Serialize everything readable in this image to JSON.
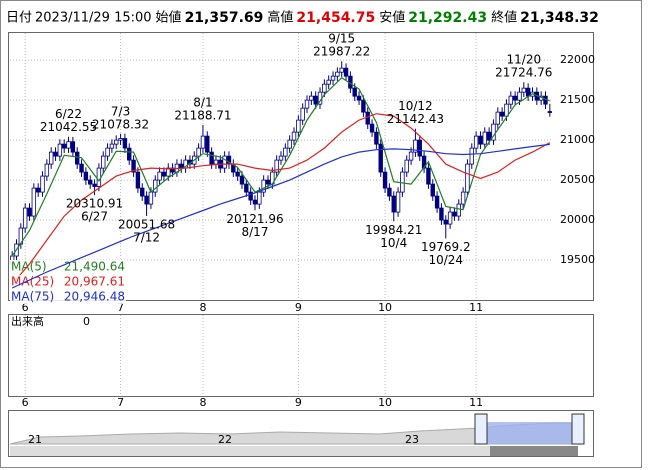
{
  "header": {
    "items": [
      {
        "label": "日付",
        "value": "2023/11/29 15:00",
        "color": "#000000"
      },
      {
        "label": "始値",
        "value": "21,357.69",
        "color": "#000000"
      },
      {
        "label": "高値",
        "value": "21,454.75",
        "color": "#e00000"
      },
      {
        "label": "安値",
        "value": "21,292.43",
        "color": "#008000"
      },
      {
        "label": "終値",
        "value": "21,348.32",
        "color": "#000000"
      }
    ]
  },
  "chart_data": {
    "type": "candlestick",
    "up_color": "#ffffff",
    "down_color": "#000080",
    "edge_color": "#000080",
    "ylim": [
      19000,
      22340
    ],
    "yticks": [
      19500,
      20000,
      20500,
      21000,
      21500,
      22000
    ],
    "grid": true,
    "xlim": [
      -0.5,
      124.5
    ],
    "xticks": [
      {
        "value": 3,
        "label": "6"
      },
      {
        "value": 25,
        "label": "7"
      },
      {
        "value": 44,
        "label": "8"
      },
      {
        "value": 66,
        "label": "9"
      },
      {
        "value": 86,
        "label": "10"
      },
      {
        "value": 107,
        "label": "11"
      }
    ],
    "candles": [
      [
        19450,
        19610,
        19390,
        19550
      ],
      [
        19550,
        19760,
        19490,
        19700
      ],
      [
        19700,
        19960,
        19640,
        19900
      ],
      [
        19900,
        20210,
        19840,
        20150
      ],
      [
        20150,
        20210,
        19990,
        20050
      ],
      [
        20050,
        20460,
        19990,
        20400
      ],
      [
        20400,
        20460,
        20290,
        20350
      ],
      [
        20350,
        20610,
        20290,
        20550
      ],
      [
        20550,
        20760,
        20490,
        20700
      ],
      [
        20700,
        20910,
        20640,
        20850
      ],
      [
        20850,
        20910,
        20740,
        20800
      ],
      [
        20800,
        21010,
        20740,
        20950
      ],
      [
        20950,
        21010,
        20840,
        20900
      ],
      [
        20900,
        21042.55,
        20840,
        20980
      ],
      [
        20980,
        21040,
        20790,
        20850
      ],
      [
        20850,
        20910,
        20640,
        20700
      ],
      [
        20700,
        20760,
        20540,
        20600
      ],
      [
        20600,
        20660,
        20440,
        20500
      ],
      [
        20500,
        20560,
        20390,
        20450
      ],
      [
        20450,
        20510,
        20310.91,
        20420
      ],
      [
        20420,
        20710,
        20360,
        20650
      ],
      [
        20650,
        20860,
        20590,
        20800
      ],
      [
        20800,
        20960,
        20740,
        20900
      ],
      [
        20900,
        21010,
        20840,
        20950
      ],
      [
        20950,
        21060,
        20890,
        21000
      ],
      [
        21000,
        21078.32,
        20940,
        21020
      ],
      [
        21020,
        21080,
        20840,
        20900
      ],
      [
        20900,
        20960,
        20690,
        20750
      ],
      [
        20750,
        20810,
        20540,
        20600
      ],
      [
        20600,
        20660,
        20340,
        20400
      ],
      [
        20400,
        20460,
        20240,
        20300
      ],
      [
        20300,
        20360,
        20051.68,
        20200
      ],
      [
        20200,
        20410,
        20140,
        20350
      ],
      [
        20350,
        20560,
        20290,
        20500
      ],
      [
        20500,
        20660,
        20440,
        20600
      ],
      [
        20600,
        20660,
        20490,
        20550
      ],
      [
        20550,
        20710,
        20490,
        20650
      ],
      [
        20650,
        20710,
        20540,
        20600
      ],
      [
        20600,
        20760,
        20540,
        20700
      ],
      [
        20700,
        20760,
        20590,
        20650
      ],
      [
        20650,
        20810,
        20590,
        20750
      ],
      [
        20750,
        20810,
        20640,
        20700
      ],
      [
        20700,
        20860,
        20640,
        20800
      ],
      [
        20800,
        20960,
        20740,
        20900
      ],
      [
        20900,
        21188.71,
        20840,
        21050
      ],
      [
        21050,
        21110,
        20790,
        20850
      ],
      [
        20850,
        20910,
        20640,
        20700
      ],
      [
        20700,
        20810,
        20640,
        20750
      ],
      [
        20750,
        20810,
        20590,
        20650
      ],
      [
        20650,
        20860,
        20590,
        20800
      ],
      [
        20800,
        20860,
        20640,
        20700
      ],
      [
        20700,
        20760,
        20540,
        20600
      ],
      [
        20600,
        20660,
        20490,
        20550
      ],
      [
        20550,
        20610,
        20390,
        20450
      ],
      [
        20450,
        20510,
        20290,
        20350
      ],
      [
        20350,
        20410,
        20190,
        20250
      ],
      [
        20250,
        20310,
        20121.96,
        20200
      ],
      [
        20200,
        20410,
        20140,
        20350
      ],
      [
        20350,
        20560,
        20290,
        20500
      ],
      [
        20500,
        20560,
        20390,
        20450
      ],
      [
        20450,
        20660,
        20390,
        20600
      ],
      [
        20600,
        20810,
        20540,
        20750
      ],
      [
        20750,
        20860,
        20690,
        20800
      ],
      [
        20800,
        20960,
        20740,
        20900
      ],
      [
        20900,
        21060,
        20840,
        21000
      ],
      [
        21000,
        21160,
        20940,
        21100
      ],
      [
        21100,
        21310,
        21040,
        21250
      ],
      [
        21250,
        21460,
        21190,
        21400
      ],
      [
        21400,
        21560,
        21340,
        21500
      ],
      [
        21500,
        21610,
        21440,
        21550
      ],
      [
        21550,
        21610,
        21390,
        21450
      ],
      [
        21450,
        21660,
        21390,
        21600
      ],
      [
        21600,
        21760,
        21540,
        21700
      ],
      [
        21700,
        21810,
        21640,
        21750
      ],
      [
        21750,
        21860,
        21690,
        21800
      ],
      [
        21800,
        21910,
        21740,
        21850
      ],
      [
        21850,
        21987.22,
        21790,
        21900
      ],
      [
        21900,
        21960,
        21740,
        21800
      ],
      [
        21800,
        21860,
        21590,
        21650
      ],
      [
        21650,
        21710,
        21490,
        21550
      ],
      [
        21550,
        21610,
        21440,
        21500
      ],
      [
        21500,
        21560,
        21290,
        21350
      ],
      [
        21350,
        21410,
        21140,
        21200
      ],
      [
        21200,
        21260,
        21040,
        21100
      ],
      [
        21100,
        21160,
        20890,
        20950
      ],
      [
        20950,
        21010,
        20540,
        20600
      ],
      [
        20600,
        20660,
        20340,
        20400
      ],
      [
        20400,
        20460,
        20240,
        20300
      ],
      [
        20300,
        20360,
        19984.21,
        20100
      ],
      [
        20100,
        20410,
        20040,
        20350
      ],
      [
        20350,
        20660,
        20290,
        20600
      ],
      [
        20600,
        20810,
        20540,
        20750
      ],
      [
        20750,
        20910,
        20690,
        20850
      ],
      [
        20850,
        21142.43,
        20790,
        21000
      ],
      [
        21000,
        21060,
        20740,
        20800
      ],
      [
        20800,
        20860,
        20590,
        20650
      ],
      [
        20650,
        20710,
        20390,
        20450
      ],
      [
        20450,
        20510,
        20240,
        20300
      ],
      [
        20300,
        20360,
        20090,
        20150
      ],
      [
        20150,
        20210,
        19940,
        20000
      ],
      [
        20000,
        20060,
        19769.2,
        19950
      ],
      [
        19950,
        20160,
        19890,
        20100
      ],
      [
        20100,
        20160,
        19990,
        20050
      ],
      [
        20050,
        20260,
        19990,
        20200
      ],
      [
        20200,
        20410,
        20140,
        20350
      ],
      [
        20350,
        20760,
        20290,
        20700
      ],
      [
        20700,
        20960,
        20640,
        20900
      ],
      [
        20900,
        21110,
        20840,
        21050
      ],
      [
        21050,
        21110,
        20890,
        20950
      ],
      [
        20950,
        21160,
        20890,
        21100
      ],
      [
        21100,
        21160,
        20940,
        21000
      ],
      [
        21000,
        21260,
        20940,
        21200
      ],
      [
        21200,
        21410,
        21140,
        21350
      ],
      [
        21350,
        21410,
        21240,
        21300
      ],
      [
        21300,
        21510,
        21240,
        21450
      ],
      [
        21450,
        21610,
        21390,
        21550
      ],
      [
        21550,
        21610,
        21440,
        21500
      ],
      [
        21500,
        21660,
        21440,
        21600
      ],
      [
        21600,
        21724.76,
        21540,
        21650
      ],
      [
        21650,
        21710,
        21490,
        21550
      ],
      [
        21550,
        21660,
        21490,
        21600
      ],
      [
        21600,
        21660,
        21440,
        21500
      ],
      [
        21500,
        21610,
        21440,
        21550
      ],
      [
        21550,
        21610,
        21390,
        21450
      ],
      [
        21357.69,
        21454.75,
        21292.43,
        21348.32
      ]
    ],
    "series": [
      {
        "name": "MA(5)",
        "color": "#208020",
        "legend_value": "21,490.64",
        "x": [
          0,
          4,
          8,
          12,
          16,
          20,
          24,
          28,
          32,
          36,
          40,
          44,
          48,
          52,
          56,
          60,
          64,
          68,
          72,
          76,
          80,
          84,
          88,
          92,
          96,
          100,
          104,
          108,
          112,
          116,
          120,
          124
        ],
        "values": [
          19550,
          19870,
          20330,
          20810,
          20780,
          20490,
          20860,
          20850,
          20350,
          20530,
          20670,
          20830,
          20790,
          20660,
          20350,
          20450,
          20810,
          21250,
          21570,
          21780,
          21640,
          21220,
          20480,
          20450,
          20730,
          20170,
          20130,
          20820,
          21130,
          21440,
          21580,
          21490.64
        ]
      },
      {
        "name": "MA(25)",
        "color": "#e02020",
        "legend_value": "20,967.61",
        "x": [
          0,
          4,
          8,
          12,
          16,
          20,
          24,
          28,
          32,
          36,
          40,
          44,
          48,
          52,
          56,
          60,
          64,
          68,
          72,
          76,
          80,
          84,
          88,
          92,
          96,
          100,
          104,
          108,
          112,
          116,
          120,
          124
        ],
        "values": [
          19200,
          19450,
          19750,
          20050,
          20250,
          20400,
          20550,
          20620,
          20650,
          20640,
          20650,
          20680,
          20700,
          20700,
          20650,
          20620,
          20650,
          20750,
          20900,
          21100,
          21250,
          21330,
          21300,
          21150,
          20950,
          20700,
          20600,
          20520,
          20600,
          20750,
          20850,
          20967.61
        ]
      },
      {
        "name": "MA(75)",
        "color": "#2030d0",
        "legend_value": "20,946.48",
        "x": [
          0,
          4,
          8,
          12,
          16,
          20,
          24,
          28,
          32,
          36,
          40,
          44,
          48,
          52,
          56,
          60,
          64,
          68,
          72,
          76,
          80,
          84,
          88,
          92,
          96,
          100,
          104,
          108,
          112,
          116,
          120,
          124
        ],
        "values": [
          19150,
          19250,
          19350,
          19440,
          19530,
          19620,
          19710,
          19800,
          19880,
          19960,
          20040,
          20120,
          20200,
          20270,
          20340,
          20420,
          20500,
          20600,
          20700,
          20790,
          20850,
          20880,
          20890,
          20880,
          20860,
          20830,
          20820,
          20830,
          20860,
          20890,
          20920,
          20946.48
        ]
      }
    ],
    "annotations": [
      {
        "date": "6/22",
        "value": 21042.55
      },
      {
        "date": "7/3",
        "value": 21078.32
      },
      {
        "date": "8/1",
        "value": 21188.71
      },
      {
        "date": "9/15",
        "value": 21987.22
      },
      {
        "date": "10/12",
        "value": 21142.43
      },
      {
        "date": "11/20",
        "value": 21724.76
      },
      {
        "date": "6/27",
        "value": 20310.91
      },
      {
        "date": "7/12",
        "value": 20051.68
      },
      {
        "date": "8/17",
        "value": 20121.96
      },
      {
        "date": "10/4",
        "value": 19984.21
      },
      {
        "date": "10/24",
        "value": 19769.2
      }
    ]
  },
  "volume": {
    "label": "出来高",
    "value": "0"
  },
  "navigator": {
    "labels": [
      "21",
      "22",
      "23"
    ]
  }
}
